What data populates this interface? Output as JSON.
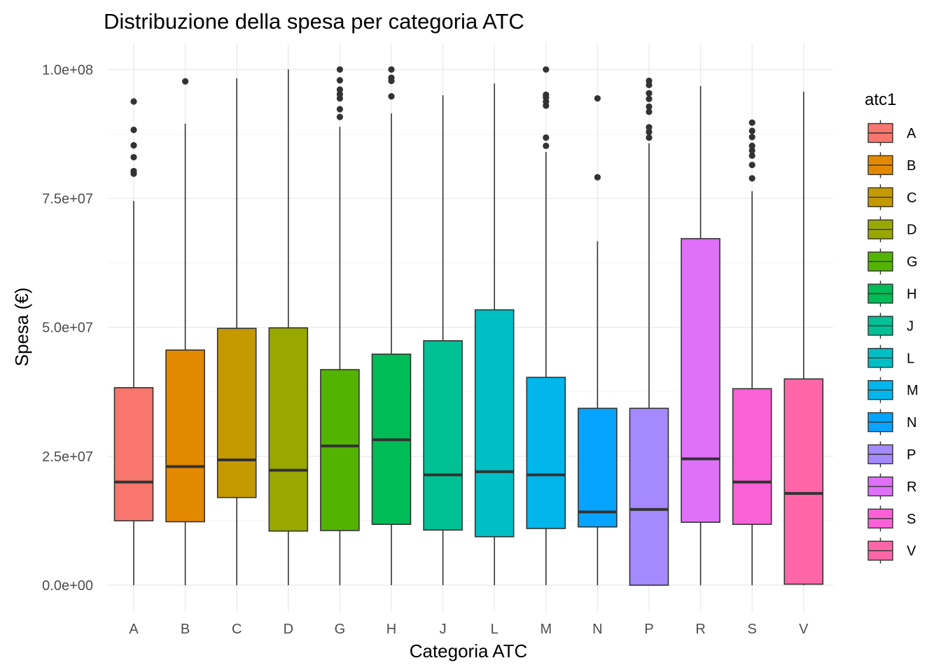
{
  "chart_data": {
    "type": "boxplot",
    "title": "Distribuzione della spesa per categoria ATC",
    "xlabel": "Categoria ATC",
    "ylabel": "Spesa (€)",
    "ylim": [
      -4000000,
      103000000
    ],
    "y_ticks": [
      0,
      25000000,
      50000000,
      75000000,
      100000000
    ],
    "y_tick_labels": [
      "0.0e+00",
      "2.5e+07",
      "5.0e+07",
      "7.5e+07",
      "1.0e+08"
    ],
    "grid": true,
    "legend": {
      "title": "atc1",
      "position": "right"
    },
    "categories": [
      "A",
      "B",
      "C",
      "D",
      "G",
      "H",
      "J",
      "L",
      "M",
      "N",
      "P",
      "R",
      "S",
      "V"
    ],
    "series": [
      {
        "name": "A",
        "color": "#F8766D",
        "min": 0,
        "q1": 12500000,
        "median": 20000000,
        "q3": 38300000,
        "max": 74500000,
        "outliers": [
          79800000,
          80300000,
          83000000,
          85300000,
          88300000,
          93800000
        ]
      },
      {
        "name": "B",
        "color": "#E38900",
        "min": 0,
        "q1": 12300000,
        "median": 23000000,
        "q3": 45600000,
        "max": 89500000,
        "outliers": [
          97700000
        ]
      },
      {
        "name": "C",
        "color": "#C49A00",
        "min": 0,
        "q1": 17000000,
        "median": 24300000,
        "q3": 49800000,
        "max": 98300000,
        "outliers": []
      },
      {
        "name": "D",
        "color": "#99A800",
        "min": 0,
        "q1": 10500000,
        "median": 22300000,
        "q3": 49900000,
        "max": 100000000,
        "outliers": []
      },
      {
        "name": "G",
        "color": "#53B400",
        "min": 0,
        "q1": 10600000,
        "median": 27000000,
        "q3": 41800000,
        "max": 88900000,
        "outliers": [
          90800000,
          92300000,
          94400000,
          95200000,
          96100000,
          97900000,
          100000000
        ]
      },
      {
        "name": "H",
        "color": "#00BC56",
        "min": 0,
        "q1": 11800000,
        "median": 28200000,
        "q3": 44800000,
        "max": 91500000,
        "outliers": [
          94800000,
          97800000,
          98400000,
          100000000
        ]
      },
      {
        "name": "J",
        "color": "#00C094",
        "min": 0,
        "q1": 10700000,
        "median": 21400000,
        "q3": 47400000,
        "max": 95000000,
        "outliers": []
      },
      {
        "name": "L",
        "color": "#00BFC4",
        "min": 0,
        "q1": 9400000,
        "median": 22000000,
        "q3": 53400000,
        "max": 97300000,
        "outliers": []
      },
      {
        "name": "M",
        "color": "#00B6EB",
        "min": 0,
        "q1": 11000000,
        "median": 21400000,
        "q3": 40300000,
        "max": 84000000,
        "outliers": [
          85200000,
          86800000,
          93000000,
          93800000,
          94600000,
          95100000,
          100000000
        ]
      },
      {
        "name": "N",
        "color": "#06A4FF",
        "min": 0,
        "q1": 11300000,
        "median": 14200000,
        "q3": 34300000,
        "max": 66700000,
        "outliers": [
          79100000,
          94400000
        ]
      },
      {
        "name": "P",
        "color": "#A58AFF",
        "min": 0,
        "q1": 0,
        "median": 14700000,
        "q3": 34300000,
        "max": 85700000,
        "outliers": [
          86800000,
          87900000,
          88800000,
          91800000,
          92800000,
          94300000,
          95400000,
          97000000,
          97800000
        ]
      },
      {
        "name": "R",
        "color": "#DF70F8",
        "min": 0,
        "q1": 12200000,
        "median": 24500000,
        "q3": 67200000,
        "max": 96800000,
        "outliers": []
      },
      {
        "name": "S",
        "color": "#FB61D7",
        "min": 0,
        "q1": 11800000,
        "median": 20000000,
        "q3": 38100000,
        "max": 76400000,
        "outliers": [
          78900000,
          81500000,
          83300000,
          84300000,
          85200000,
          86900000,
          88100000,
          89700000
        ]
      },
      {
        "name": "V",
        "color": "#FF66A8",
        "min": 0,
        "q1": 200000,
        "median": 17800000,
        "q3": 40000000,
        "max": 95700000,
        "outliers": []
      }
    ]
  }
}
